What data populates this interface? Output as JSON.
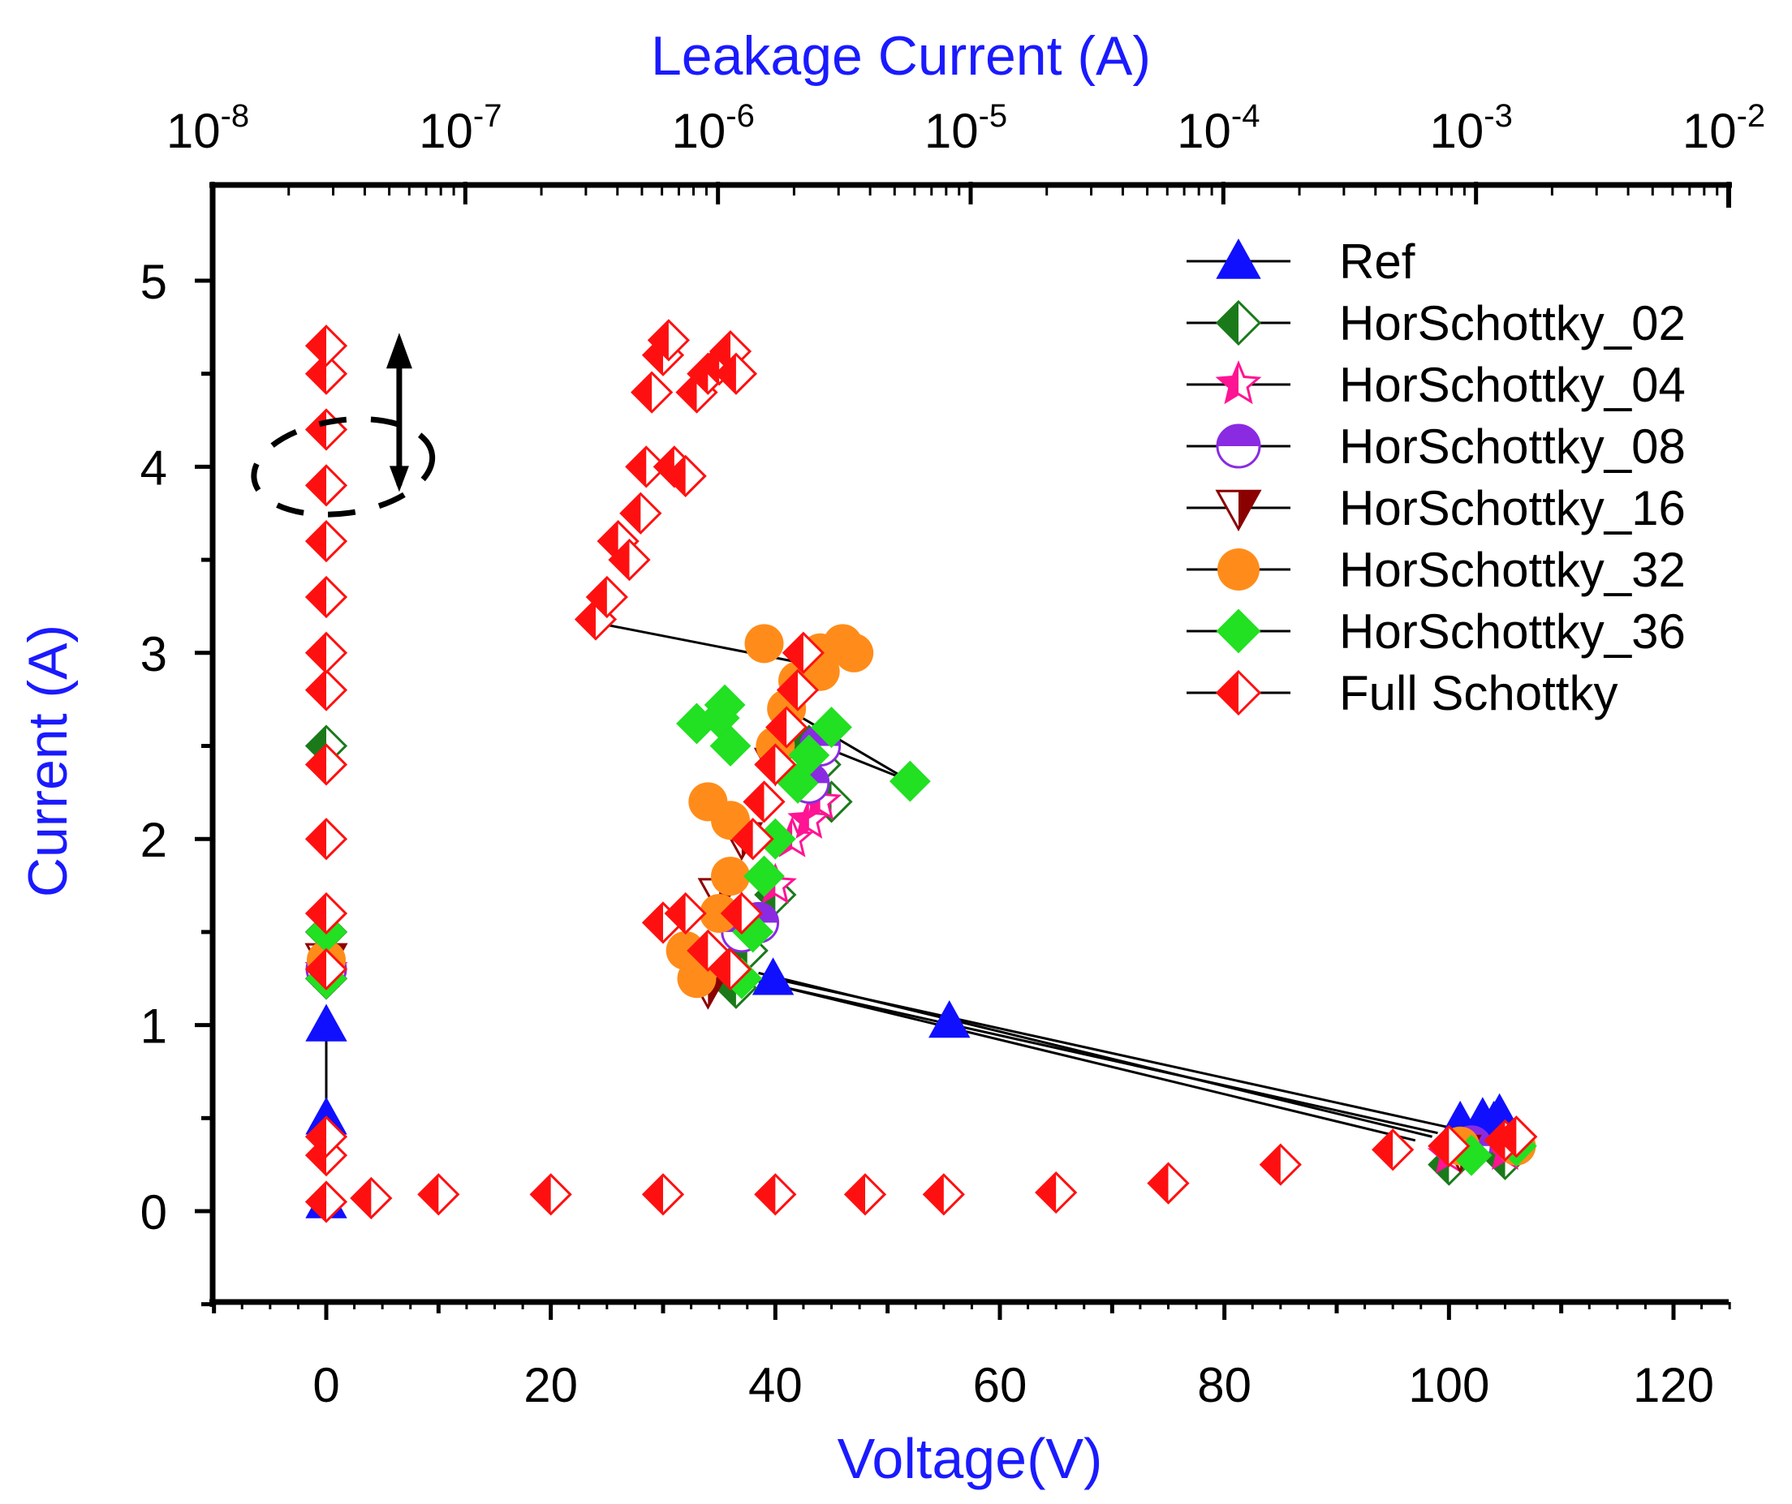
{
  "chart_data": {
    "type": "scatter",
    "title": "",
    "xlabel": "Voltage(V)",
    "ylabel": "Current (A)",
    "x2label": "Leakage Current (A)",
    "xlim": [
      -10,
      125
    ],
    "ylim": [
      -0.5,
      5.4
    ],
    "x2lim_exp": [
      -8,
      -2
    ],
    "xticks": [
      0,
      20,
      40,
      60,
      80,
      100,
      120
    ],
    "yticks": [
      0,
      1,
      2,
      3,
      4,
      5
    ],
    "x2ticks": [
      {
        "base": "10",
        "exp": "-8"
      },
      {
        "base": "10",
        "exp": "-7"
      },
      {
        "base": "10",
        "exp": "-6"
      },
      {
        "base": "10",
        "exp": "-5"
      },
      {
        "base": "10",
        "exp": "-4"
      },
      {
        "base": "10",
        "exp": "-3"
      },
      {
        "base": "10",
        "exp": "-2"
      }
    ],
    "legend_position": "top-right",
    "colors": {
      "axis": "#000000",
      "label_blue": "#1a1aff",
      "ref": "#1010ff",
      "hor02": "#1a7a1a",
      "hor04": "#ff1493",
      "hor08": "#8a2be2",
      "hor16": "#8b0000",
      "hor32": "#ff8c1a",
      "hor36": "#22e022",
      "full": "#ff1010"
    },
    "series": [
      {
        "name": "Ref",
        "marker": "triangle",
        "color": "#1010ff",
        "points": [
          [
            0,
            0.05
          ],
          [
            0,
            0.5
          ],
          [
            0,
            1.0
          ],
          [
            39.8,
            1.25
          ],
          [
            55.5,
            1.02
          ],
          [
            101,
            0.48
          ],
          [
            103,
            0.5
          ],
          [
            104.5,
            0.52
          ],
          [
            104,
            0.48
          ]
        ]
      },
      {
        "name": "HorSchottky_02",
        "marker": "half-diamond",
        "color": "#1a7a1a",
        "points": [
          [
            0,
            1.25
          ],
          [
            0,
            1.5
          ],
          [
            0,
            2.5
          ],
          [
            36.5,
            1.2
          ],
          [
            37.5,
            1.4
          ],
          [
            40,
            1.7
          ],
          [
            44,
            2.4
          ],
          [
            45,
            2.2
          ],
          [
            43,
            2.5
          ],
          [
            100,
            0.25
          ],
          [
            105,
            0.28
          ]
        ]
      },
      {
        "name": "HorSchottky_04",
        "marker": "star",
        "color": "#ff1493",
        "points": [
          [
            0,
            1.3
          ],
          [
            37,
            1.6
          ],
          [
            40,
            1.75
          ],
          [
            41.5,
            2.0
          ],
          [
            43,
            2.1
          ],
          [
            44,
            2.2
          ],
          [
            100,
            0.3
          ],
          [
            105,
            0.32
          ]
        ]
      },
      {
        "name": "HorSchottky_08",
        "marker": "half-circle",
        "color": "#8a2be2",
        "points": [
          [
            0,
            1.3
          ],
          [
            37,
            1.5
          ],
          [
            38.5,
            1.55
          ],
          [
            43,
            2.3
          ],
          [
            44,
            2.5
          ],
          [
            102,
            0.35
          ]
        ]
      },
      {
        "name": "HorSchottky_16",
        "marker": "half-triangle-down",
        "color": "#8b0000",
        "points": [
          [
            0,
            1.35
          ],
          [
            34,
            1.2
          ],
          [
            35,
            1.7
          ],
          [
            37,
            2.0
          ],
          [
            40,
            2.4
          ],
          [
            101,
            0.32
          ]
        ]
      },
      {
        "name": "HorSchottky_32",
        "marker": "circle",
        "color": "#ff8c1a",
        "points": [
          [
            0,
            1.35
          ],
          [
            32,
            1.4
          ],
          [
            33,
            1.25
          ],
          [
            34,
            1.35
          ],
          [
            35,
            1.6
          ],
          [
            36,
            1.8
          ],
          [
            34,
            2.2
          ],
          [
            36,
            2.1
          ],
          [
            40,
            2.5
          ],
          [
            41,
            2.7
          ],
          [
            42,
            2.85
          ],
          [
            39,
            3.05
          ],
          [
            44,
            3.0
          ],
          [
            46,
            3.05
          ],
          [
            47,
            3.0
          ],
          [
            44,
            2.9
          ],
          [
            101,
            0.35
          ],
          [
            106,
            0.35
          ]
        ]
      },
      {
        "name": "HorSchottky_36",
        "marker": "diamond",
        "color": "#22e022",
        "points": [
          [
            0,
            1.25
          ],
          [
            0,
            1.5
          ],
          [
            37,
            1.25
          ],
          [
            38,
            1.5
          ],
          [
            39,
            1.8
          ],
          [
            40,
            2.0
          ],
          [
            42,
            2.3
          ],
          [
            33,
            2.62
          ],
          [
            35,
            2.65
          ],
          [
            35.5,
            2.72
          ],
          [
            36,
            2.5
          ],
          [
            43,
            2.45
          ],
          [
            45,
            2.6
          ],
          [
            52,
            2.31
          ],
          [
            102,
            0.3
          ],
          [
            106,
            0.35
          ]
        ]
      },
      {
        "name": "Full Schottky",
        "marker": "half-diamond",
        "color": "#ff1010",
        "points": [
          [
            0,
            0.05
          ],
          [
            0,
            0.3
          ],
          [
            0,
            0.4
          ],
          [
            4,
            0.07
          ],
          [
            10,
            0.09
          ],
          [
            20,
            0.09
          ],
          [
            30,
            0.09
          ],
          [
            40,
            0.09
          ],
          [
            48,
            0.09
          ],
          [
            55,
            0.09
          ],
          [
            65,
            0.1
          ],
          [
            75,
            0.15
          ],
          [
            85,
            0.25
          ],
          [
            95,
            0.33
          ],
          [
            100,
            0.35
          ],
          [
            105,
            0.38
          ],
          [
            106,
            0.4
          ],
          [
            0,
            1.3
          ],
          [
            0,
            1.6
          ],
          [
            0,
            2.0
          ],
          [
            0,
            2.4
          ],
          [
            0,
            2.8
          ],
          [
            0,
            3.0
          ],
          [
            0,
            3.3
          ],
          [
            0,
            3.6
          ],
          [
            0,
            3.9
          ],
          [
            0,
            4.2
          ],
          [
            0,
            4.5
          ],
          [
            0,
            4.65
          ],
          [
            30,
            1.55
          ],
          [
            32,
            1.6
          ],
          [
            34,
            1.4
          ],
          [
            36,
            1.3
          ],
          [
            37,
            1.6
          ],
          [
            38,
            2.0
          ],
          [
            39,
            2.2
          ],
          [
            40,
            2.4
          ],
          [
            41,
            2.6
          ],
          [
            42,
            2.8
          ],
          [
            42.5,
            3.0
          ],
          [
            24,
            3.18
          ],
          [
            25,
            3.3
          ],
          [
            26,
            3.6
          ],
          [
            27,
            3.5
          ],
          [
            28,
            3.75
          ],
          [
            28.5,
            4.0
          ],
          [
            29,
            4.4
          ],
          [
            30,
            4.6
          ],
          [
            30.5,
            4.68
          ],
          [
            31,
            4.0
          ],
          [
            32,
            3.95
          ],
          [
            33,
            4.4
          ],
          [
            34,
            4.5
          ],
          [
            35,
            4.55
          ],
          [
            36,
            4.62
          ],
          [
            36.5,
            4.5
          ]
        ]
      }
    ],
    "connector_lines": [
      [
        [
          0,
          0.5
        ],
        [
          0,
          1.0
        ]
      ],
      [
        [
          39.8,
          1.25
        ],
        [
          100,
          0.45
        ]
      ],
      [
        [
          39.5,
          1.22
        ],
        [
          99,
          0.42
        ]
      ],
      [
        [
          38.5,
          1.28
        ],
        [
          98.5,
          0.4
        ]
      ],
      [
        [
          37.5,
          1.25
        ],
        [
          97,
          0.38
        ]
      ],
      [
        [
          25,
          3.15
        ],
        [
          42,
          2.95
        ]
      ],
      [
        [
          41,
          2.7
        ],
        [
          52,
          2.31
        ]
      ],
      [
        [
          42,
          2.55
        ],
        [
          52,
          2.31
        ]
      ]
    ],
    "annotations": [
      {
        "type": "ellipse-dashed",
        "center": [
          1.5,
          4.0
        ],
        "rx_data": 8.0,
        "ry_data": 0.25
      },
      {
        "type": "double-arrow",
        "x": 6.5,
        "y_from": 3.9,
        "y_to": 4.72
      }
    ]
  }
}
